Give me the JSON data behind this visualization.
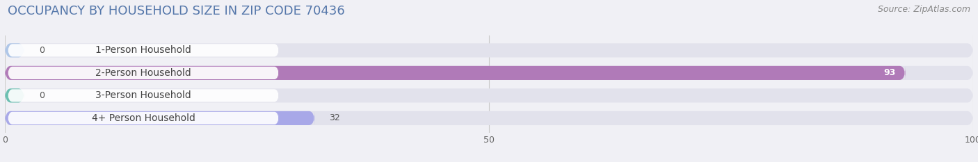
{
  "title": "OCCUPANCY BY HOUSEHOLD SIZE IN ZIP CODE 70436",
  "source": "Source: ZipAtlas.com",
  "categories": [
    "1-Person Household",
    "2-Person Household",
    "3-Person Household",
    "4+ Person Household"
  ],
  "values": [
    0,
    93,
    0,
    32
  ],
  "bar_colors": [
    "#aec6e8",
    "#b07ab8",
    "#6abfb0",
    "#a8a8e8"
  ],
  "value_label_colors": [
    "#555555",
    "#ffffff",
    "#555555",
    "#555555"
  ],
  "xlim": [
    0,
    100
  ],
  "background_color": "#f0f0f5",
  "bar_background_color": "#e2e2ec",
  "title_color": "#5577aa",
  "title_fontsize": 13,
  "source_fontsize": 9,
  "label_fontsize": 10,
  "value_fontsize": 9,
  "tick_fontsize": 9
}
